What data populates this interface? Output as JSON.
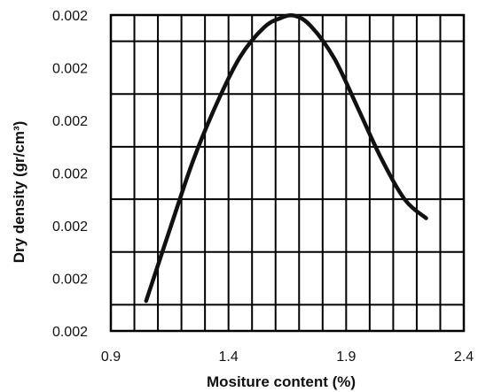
{
  "chart_data": {
    "type": "line",
    "title": "",
    "xlabel": "Mositure content (%)",
    "ylabel": "Dry density (gr/cm³)",
    "xlim": [
      0.9,
      2.4
    ],
    "x_ticks": [
      "0.9",
      "1.4",
      "1.9",
      "2.4"
    ],
    "y_ticks": [
      "0.002",
      "0.002",
      "0.002",
      "0.002",
      "0.002",
      "0.002",
      "0.002"
    ],
    "grid": true,
    "legend": "none",
    "series": [
      {
        "color": "#111111",
        "x": [
          1.05,
          1.15,
          1.25,
          1.35,
          1.45,
          1.55,
          1.62,
          1.68,
          1.75,
          1.85,
          1.95,
          2.05,
          2.15,
          2.24
        ],
        "y_fraction": [
          0.095,
          0.32,
          0.54,
          0.72,
          0.868,
          0.96,
          0.99,
          0.998,
          0.965,
          0.862,
          0.705,
          0.545,
          0.415,
          0.357
        ]
      }
    ]
  }
}
